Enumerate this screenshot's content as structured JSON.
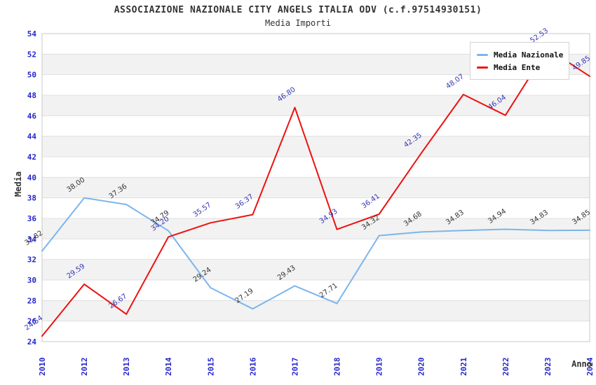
{
  "header": {
    "title": "ASSOCIAZIONE NAZIONALE CITY ANGELS ITALIA ODV (c.f.97514930151)",
    "subtitle": "Media Importi"
  },
  "legend": {
    "items": [
      {
        "label": "Media Nazionale",
        "color": "#7cb5ec"
      },
      {
        "label": "Media Ente",
        "color": "#ee1111"
      }
    ]
  },
  "chart_data": {
    "type": "line",
    "title": "ASSOCIAZIONE NAZIONALE CITY ANGELS ITALIA ODV (c.f.97514930151)",
    "subtitle": "Media Importi",
    "xlabel": "Anno",
    "ylabel": "Media",
    "x": [
      "2010",
      "2012",
      "2013",
      "2014",
      "2015",
      "2016",
      "2017",
      "2018",
      "2019",
      "2020",
      "2021",
      "2022",
      "2023",
      "2024"
    ],
    "series": [
      {
        "name": "Media Nazionale",
        "color": "#7cb5ec",
        "label_color": "#333333",
        "values": [
          32.82,
          38.0,
          37.36,
          34.79,
          29.24,
          27.19,
          29.43,
          27.71,
          34.32,
          34.68,
          34.83,
          34.94,
          34.83,
          34.85
        ]
      },
      {
        "name": "Media Ente",
        "color": "#ee1111",
        "label_color": "#3434b8",
        "values": [
          24.54,
          29.59,
          26.67,
          34.2,
          35.57,
          36.37,
          46.8,
          34.93,
          36.41,
          42.35,
          48.07,
          46.04,
          52.53,
          49.85
        ]
      }
    ],
    "ylim": [
      24,
      54
    ],
    "ytick_step": 2,
    "yticks": [
      "24",
      "26",
      "28",
      "30",
      "32",
      "34",
      "36",
      "38",
      "40",
      "42",
      "44",
      "46",
      "48",
      "50",
      "52",
      "54"
    ],
    "grid": "horizontal, alternating shaded bands",
    "legend_position": "top-right",
    "colors": {
      "axis_tick_text": "#2525cd",
      "band_fill": "#f2f2f2",
      "gridline": "#e0e0e0",
      "frame": "#c8c8c8"
    }
  }
}
